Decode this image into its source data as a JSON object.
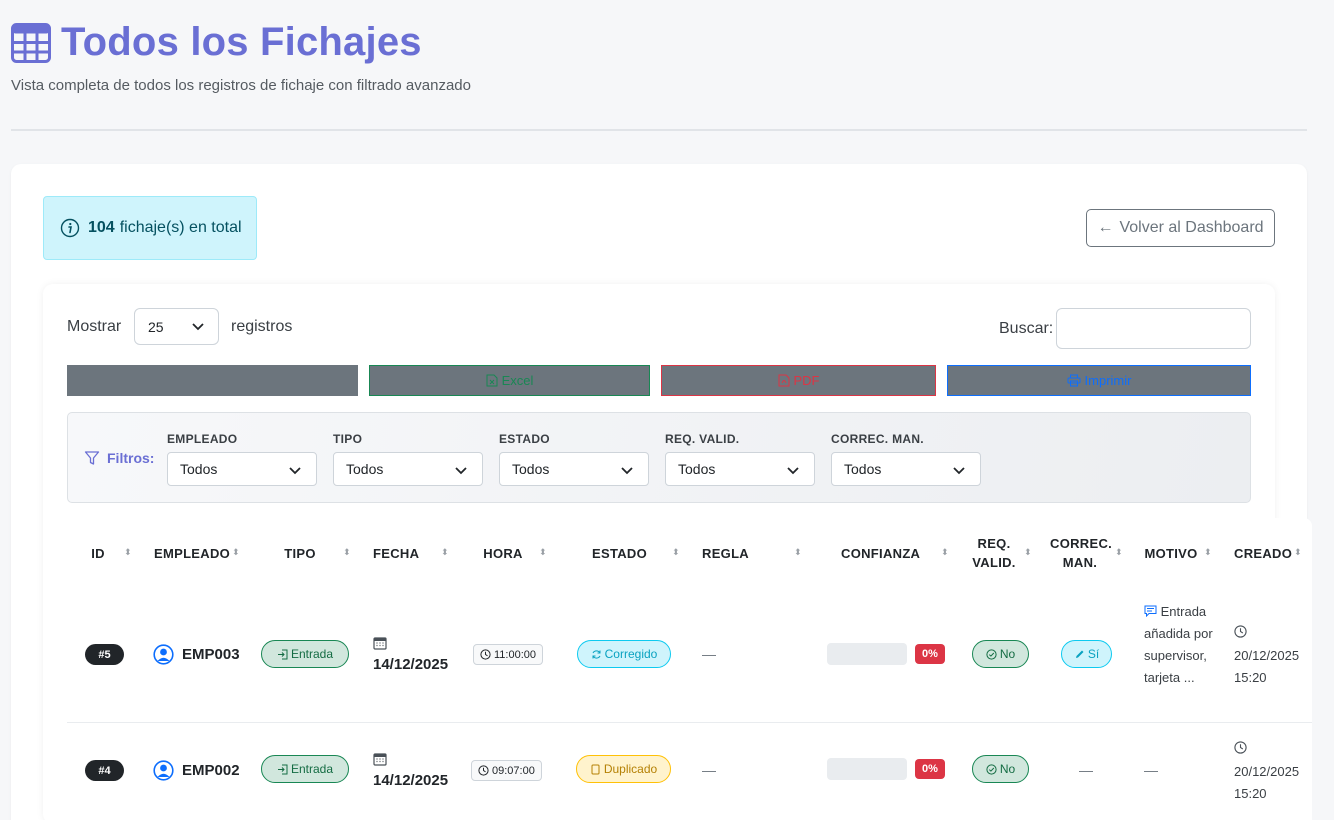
{
  "header": {
    "title": "Todos los Fichajes",
    "subtitle": "Vista completa de todos los registros de fichaje con filtrado avanzado",
    "icon": "table-icon"
  },
  "summary": {
    "count": "104",
    "text": "fichaje(s) en total",
    "icon": "info-icon"
  },
  "back_button": {
    "label": "Volver al Dashboard",
    "arrow": "←"
  },
  "length_control": {
    "prefix": "Mostrar",
    "value": "25",
    "suffix": "registros"
  },
  "search": {
    "label": "Buscar:",
    "value": ""
  },
  "export_buttons": {
    "copy": "",
    "excel": "Excel",
    "pdf": "PDF",
    "print": "Imprimir"
  },
  "filters": {
    "label": "Filtros:",
    "items": [
      {
        "label": "EMPLEADO",
        "value": "Todos"
      },
      {
        "label": "TIPO",
        "value": "Todos"
      },
      {
        "label": "ESTADO",
        "value": "Todos"
      },
      {
        "label": "REQ. VALID.",
        "value": "Todos"
      },
      {
        "label": "CORREC. MAN.",
        "value": "Todos"
      }
    ]
  },
  "table": {
    "columns": [
      "ID",
      "EMPLEADO",
      "TIPO",
      "FECHA",
      "HORA",
      "ESTADO",
      "REGLA",
      "CONFIANZA",
      "REQ. VALID.",
      "CORREC. MAN.",
      "MOTIVO",
      "CREADO"
    ],
    "rows": [
      {
        "id": "#5",
        "empleado": "EMP003",
        "tipo": "Entrada",
        "fecha": "14/12/2025",
        "hora": "11:00:00",
        "estado": "Corregido",
        "regla": "—",
        "confianza": "0%",
        "req_valid": "No",
        "correc_man": "Sí",
        "motivo": "Entrada añadida por supervisor, tarjeta ...",
        "creado_fecha": "20/12/2025",
        "creado_hora": "15:20"
      },
      {
        "id": "#4",
        "empleado": "EMP002",
        "tipo": "Entrada",
        "fecha": "14/12/2025",
        "hora": "09:07:00",
        "estado": "Duplicado",
        "regla": "—",
        "confianza": "0%",
        "req_valid": "No",
        "correc_man": "—",
        "motivo": "—",
        "creado_fecha": "20/12/2025",
        "creado_hora": "15:20"
      }
    ]
  },
  "colors": {
    "accent": "#6a6fd4",
    "success": "#198754",
    "danger": "#dc3545",
    "info": "#0dcaf0",
    "warning": "#ffc107",
    "primary": "#0d6efd",
    "secondary": "#6c757d"
  }
}
